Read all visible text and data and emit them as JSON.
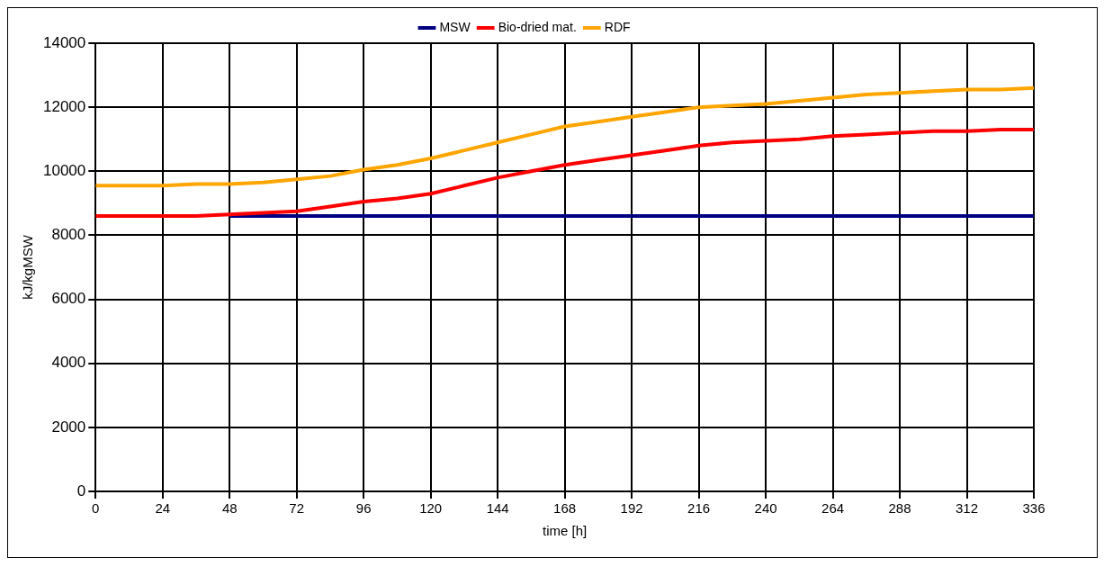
{
  "chart_data": {
    "type": "line",
    "xlabel": "time [h]",
    "ylabel": "kJ/kgMSW",
    "x": [
      0,
      12,
      24,
      36,
      48,
      60,
      72,
      84,
      96,
      108,
      120,
      132,
      144,
      156,
      168,
      180,
      192,
      204,
      216,
      228,
      240,
      252,
      264,
      276,
      288,
      300,
      312,
      324,
      336
    ],
    "series": [
      {
        "name": "MSW",
        "color": "#000080",
        "values": [
          null,
          null,
          null,
          null,
          8600,
          8600,
          8600,
          8600,
          8600,
          8600,
          8600,
          8600,
          8600,
          8600,
          8600,
          8600,
          8600,
          8600,
          8600,
          8600,
          8600,
          8600,
          8600,
          8600,
          8600,
          8600,
          8600,
          8600,
          8600
        ]
      },
      {
        "name": "Bio-dried mat.",
        "color": "#ff0000",
        "values": [
          8600,
          8600,
          8600,
          8600,
          8650,
          8700,
          8750,
          8900,
          9050,
          9150,
          9300,
          9550,
          9800,
          10000,
          10200,
          10350,
          10500,
          10650,
          10800,
          10900,
          10950,
          11000,
          11100,
          11150,
          11200,
          11250,
          11250,
          11300,
          11300
        ]
      },
      {
        "name": "RDF",
        "color": "#ffa500",
        "values": [
          9550,
          9550,
          9550,
          9600,
          9600,
          9650,
          9750,
          9850,
          10050,
          10200,
          10400,
          10650,
          10900,
          11150,
          11400,
          11550,
          11700,
          11850,
          12000,
          12050,
          12100,
          12200,
          12300,
          12400,
          12450,
          12500,
          12550,
          12550,
          12600
        ]
      }
    ],
    "xlim": [
      0,
      336
    ],
    "xticks": [
      0,
      24,
      48,
      72,
      96,
      120,
      144,
      168,
      192,
      216,
      240,
      264,
      288,
      312,
      336
    ],
    "ylim": [
      0,
      14000
    ],
    "yticks": [
      0,
      2000,
      4000,
      6000,
      8000,
      10000,
      12000,
      14000
    ],
    "grid": true,
    "legend": "top",
    "line_style": "solid",
    "marker": "none"
  }
}
